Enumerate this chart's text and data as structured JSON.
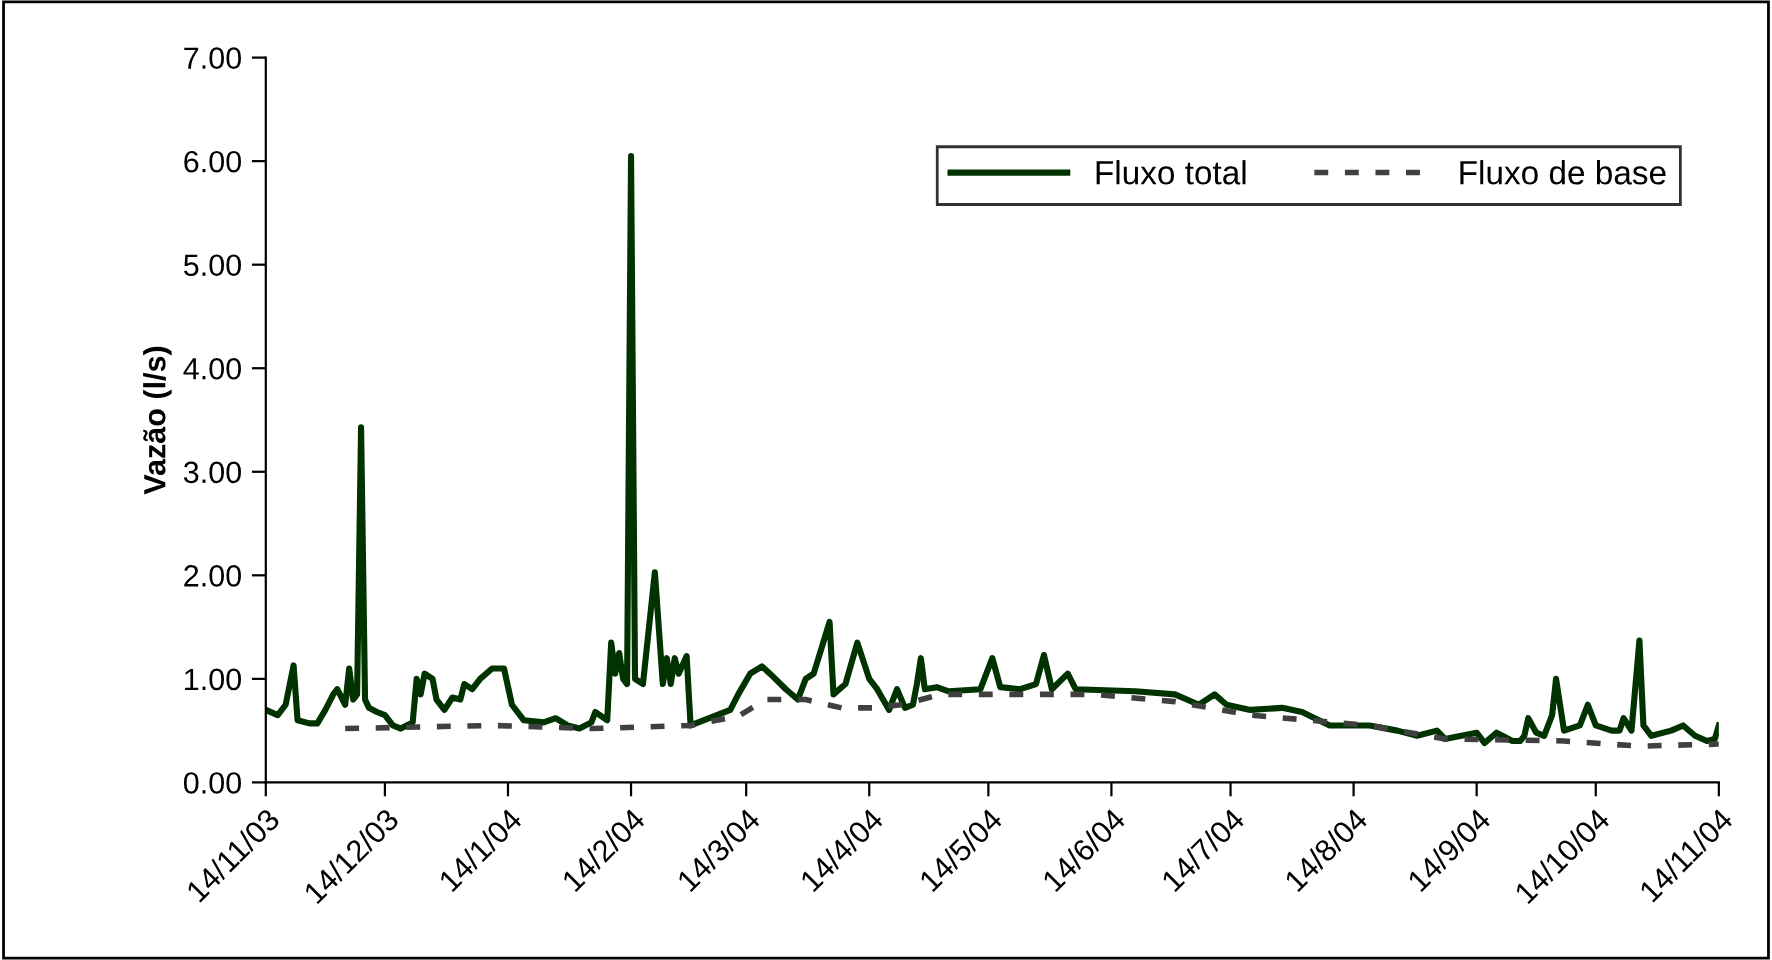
{
  "chart_data": {
    "type": "line",
    "ylabel": "Vazão (l/s)",
    "xlim": [
      "2003-11-14",
      "2004-11-14"
    ],
    "xticks": [
      {
        "value": "2003-11-14",
        "label": "14/11/03"
      },
      {
        "value": "2003-12-14",
        "label": "14/12/03"
      },
      {
        "value": "2004-01-14",
        "label": "14/1/04"
      },
      {
        "value": "2004-02-14",
        "label": "14/2/04"
      },
      {
        "value": "2004-03-14",
        "label": "14/3/04"
      },
      {
        "value": "2004-04-14",
        "label": "14/4/04"
      },
      {
        "value": "2004-05-14",
        "label": "14/5/04"
      },
      {
        "value": "2004-06-14",
        "label": "14/6/04"
      },
      {
        "value": "2004-07-14",
        "label": "14/7/04"
      },
      {
        "value": "2004-08-14",
        "label": "14/8/04"
      },
      {
        "value": "2004-09-14",
        "label": "14/9/04"
      },
      {
        "value": "2004-10-14",
        "label": "14/10/04"
      },
      {
        "value": "2004-11-14",
        "label": "14/11/04"
      }
    ],
    "ylim": [
      0,
      7
    ],
    "yticks": [
      {
        "value": 0,
        "label": "0.00"
      },
      {
        "value": 1,
        "label": "1.00"
      },
      {
        "value": 2,
        "label": "2.00"
      },
      {
        "value": 3,
        "label": "3.00"
      },
      {
        "value": 4,
        "label": "4.00"
      },
      {
        "value": 5,
        "label": "5.00"
      },
      {
        "value": 6,
        "label": "6.00"
      },
      {
        "value": 7,
        "label": "7.00"
      }
    ],
    "grid": false,
    "legend": "top right",
    "marker": "none",
    "series": [
      {
        "name": "Fluxo total",
        "color": "#003300",
        "line_style": "solid",
        "x": [
          "2003-11-14",
          "2003-11-17",
          "2003-11-19",
          "2003-11-21",
          "2003-11-22",
          "2003-11-25",
          "2003-11-27",
          "2003-11-29",
          "2003-12-01",
          "2003-12-02",
          "2003-12-04",
          "2003-12-05",
          "2003-12-06",
          "2003-12-07",
          "2003-12-08",
          "2003-12-09",
          "2003-12-10",
          "2003-12-12",
          "2003-12-14",
          "2003-12-16",
          "2003-12-18",
          "2003-12-21",
          "2003-12-22",
          "2003-12-23",
          "2003-12-24",
          "2003-12-26",
          "2003-12-27",
          "2003-12-29",
          "2003-12-31",
          "2004-01-02",
          "2004-01-03",
          "2004-01-05",
          "2004-01-07",
          "2004-01-10",
          "2004-01-13",
          "2004-01-15",
          "2004-01-18",
          "2004-01-23",
          "2004-01-26",
          "2004-01-29",
          "2004-02-01",
          "2004-02-04",
          "2004-02-05",
          "2004-02-08",
          "2004-02-09",
          "2004-02-10",
          "2004-02-11",
          "2004-02-12",
          "2004-02-13",
          "2004-02-14",
          "2004-02-15",
          "2004-02-17",
          "2004-02-20",
          "2004-02-22",
          "2004-02-23",
          "2004-02-24",
          "2004-02-25",
          "2004-02-26",
          "2004-02-28",
          "2004-02-29",
          "2004-03-10",
          "2004-03-12",
          "2004-03-15",
          "2004-03-18",
          "2004-03-20",
          "2004-03-24",
          "2004-03-27",
          "2004-03-29",
          "2004-03-31",
          "2004-04-02",
          "2004-04-04",
          "2004-04-05",
          "2004-04-08",
          "2004-04-11",
          "2004-04-14",
          "2004-04-16",
          "2004-04-19",
          "2004-04-21",
          "2004-04-23",
          "2004-04-25",
          "2004-04-26",
          "2004-04-27",
          "2004-04-28",
          "2004-05-01",
          "2004-05-04",
          "2004-05-12",
          "2004-05-15",
          "2004-05-17",
          "2004-05-22",
          "2004-05-26",
          "2004-05-28",
          "2004-05-30",
          "2004-06-03",
          "2004-06-05",
          "2004-06-20",
          "2004-06-30",
          "2004-07-03",
          "2004-07-06",
          "2004-07-10",
          "2004-07-13",
          "2004-07-19",
          "2004-07-27",
          "2004-08-01",
          "2004-08-08",
          "2004-08-18",
          "2004-08-25",
          "2004-08-30",
          "2004-09-04",
          "2004-09-06",
          "2004-09-14",
          "2004-09-16",
          "2004-09-19",
          "2004-09-23",
          "2004-09-25",
          "2004-09-26",
          "2004-09-27",
          "2004-09-29",
          "2004-10-01",
          "2004-10-03",
          "2004-10-04",
          "2004-10-06",
          "2004-10-10",
          "2004-10-12",
          "2004-10-14",
          "2004-10-18",
          "2004-10-20",
          "2004-10-21",
          "2004-10-23",
          "2004-10-25",
          "2004-10-26",
          "2004-10-28",
          "2004-11-02",
          "2004-11-05",
          "2004-11-08",
          "2004-11-11",
          "2004-11-13",
          "2004-11-14"
        ],
        "values": [
          0.7,
          0.65,
          0.75,
          1.13,
          0.6,
          0.57,
          0.57,
          0.7,
          0.85,
          0.9,
          0.75,
          1.1,
          0.8,
          0.85,
          3.43,
          0.8,
          0.72,
          0.68,
          0.65,
          0.55,
          0.52,
          0.58,
          1.0,
          0.85,
          1.05,
          1.0,
          0.8,
          0.7,
          0.82,
          0.8,
          0.95,
          0.9,
          1.0,
          1.1,
          1.1,
          0.75,
          0.6,
          0.58,
          0.62,
          0.55,
          0.52,
          0.58,
          0.68,
          0.6,
          1.35,
          1.05,
          1.25,
          1.0,
          0.95,
          6.05,
          1.0,
          0.95,
          2.03,
          0.95,
          1.2,
          0.95,
          1.2,
          1.05,
          1.22,
          0.55,
          0.7,
          0.85,
          1.05,
          1.12,
          1.05,
          0.9,
          0.8,
          1.0,
          1.05,
          1.3,
          1.55,
          0.85,
          0.95,
          1.35,
          1.0,
          0.9,
          0.7,
          0.9,
          0.72,
          0.75,
          0.95,
          1.2,
          0.9,
          0.92,
          0.88,
          0.9,
          1.2,
          0.92,
          0.9,
          0.95,
          1.23,
          0.9,
          1.05,
          0.9,
          0.88,
          0.85,
          0.8,
          0.75,
          0.85,
          0.75,
          0.7,
          0.72,
          0.68,
          0.55,
          0.55,
          0.5,
          0.45,
          0.5,
          0.42,
          0.48,
          0.38,
          0.48,
          0.4,
          0.4,
          0.45,
          0.62,
          0.48,
          0.45,
          0.65,
          1.0,
          0.5,
          0.55,
          0.75,
          0.55,
          0.5,
          0.5,
          0.62,
          0.5,
          1.37,
          0.55,
          0.45,
          0.5,
          0.55,
          0.45,
          0.4,
          0.42,
          0.55
        ]
      },
      {
        "name": "Fluxo de base",
        "color": "#404040",
        "line_style": "dashed",
        "x": [
          "2003-12-04",
          "2004-01-10",
          "2004-02-04",
          "2004-02-29",
          "2004-03-12",
          "2004-03-19",
          "2004-03-29",
          "2004-04-07",
          "2004-04-15",
          "2004-04-22",
          "2004-05-02",
          "2004-06-10",
          "2004-06-30",
          "2004-07-19",
          "2004-08-18",
          "2004-09-06",
          "2004-10-06",
          "2004-10-25",
          "2004-11-14"
        ],
        "values": [
          0.52,
          0.55,
          0.52,
          0.55,
          0.64,
          0.8,
          0.8,
          0.72,
          0.72,
          0.75,
          0.85,
          0.85,
          0.78,
          0.65,
          0.55,
          0.42,
          0.4,
          0.35,
          0.37
        ]
      }
    ]
  }
}
